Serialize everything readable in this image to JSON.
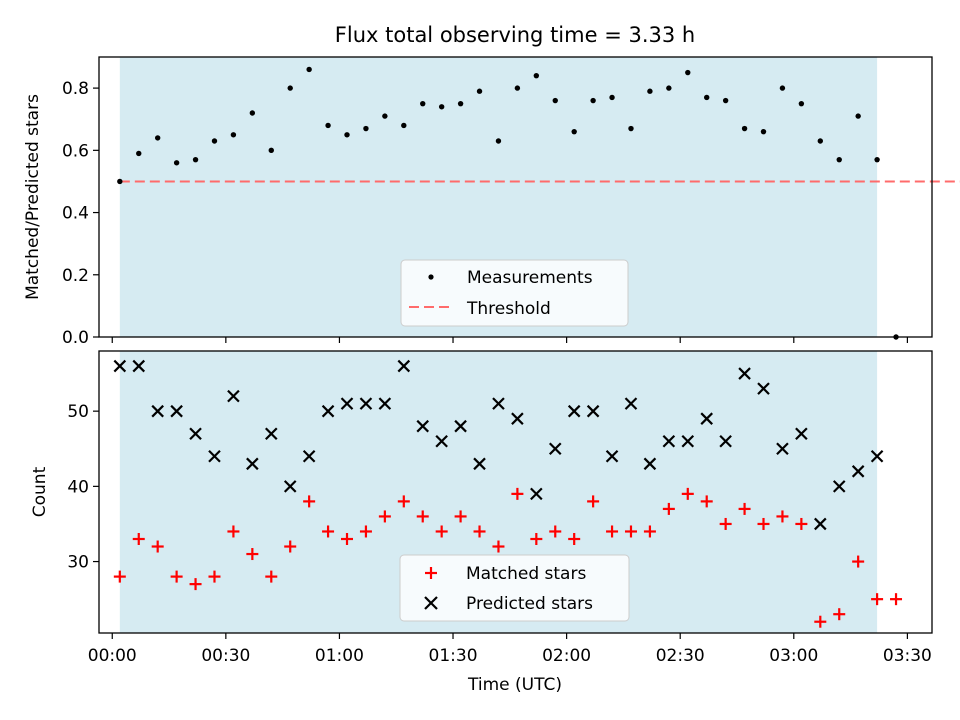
{
  "chart_data": [
    {
      "type": "scatter",
      "title": "Flux total observing time = 3.33 h",
      "xlabel": "",
      "ylabel": "Matched/Predicted stars",
      "ylim": [
        0,
        0.9
      ],
      "yticks": [
        "0.0",
        "0.2",
        "0.4",
        "0.6",
        "0.8"
      ],
      "threshold": {
        "name": "Threshold",
        "value": 0.5,
        "x_range": [
          2,
          230
        ],
        "color": "#ff6b6b"
      },
      "shaded_span_minutes": [
        2,
        202
      ],
      "shade_color": "#add8e6",
      "legend": [
        "Measurements",
        "Threshold"
      ],
      "legend_position": "lower center",
      "series": [
        {
          "name": "Measurements",
          "color": "#000000",
          "x": [
            2,
            7,
            12,
            17,
            22,
            27,
            32,
            37,
            42,
            47,
            52,
            57,
            62,
            67,
            72,
            77,
            82,
            87,
            92,
            97,
            102,
            107,
            112,
            117,
            122,
            127,
            132,
            137,
            142,
            147,
            152,
            157,
            162,
            167,
            172,
            177,
            182,
            187,
            192,
            197,
            202,
            207
          ],
          "y": [
            0.5,
            0.59,
            0.64,
            0.56,
            0.57,
            0.63,
            0.65,
            0.72,
            0.6,
            0.8,
            0.86,
            0.68,
            0.65,
            0.67,
            0.71,
            0.68,
            0.75,
            0.74,
            0.75,
            0.79,
            0.63,
            0.8,
            0.84,
            0.76,
            0.66,
            0.76,
            0.77,
            0.67,
            0.79,
            0.8,
            0.85,
            0.77,
            0.76,
            0.67,
            0.66,
            0.8,
            0.75,
            0.63,
            0.57,
            0.71,
            0.57,
            0.0
          ]
        }
      ]
    },
    {
      "type": "scatter",
      "title": "",
      "xlabel": "Time (UTC)",
      "ylabel": "Count",
      "ylim": [
        20.5,
        58
      ],
      "yticks": [
        "30",
        "40",
        "50"
      ],
      "xticks": [
        "00:00",
        "00:30",
        "01:00",
        "01:30",
        "02:00",
        "02:30",
        "03:00",
        "03:30"
      ],
      "shaded_span_minutes": [
        2,
        202
      ],
      "legend": [
        "Matched stars",
        "Predicted stars"
      ],
      "legend_position": "lower center",
      "series": [
        {
          "name": "Matched stars",
          "color": "#ff0000",
          "marker": "+",
          "x": [
            2,
            7,
            12,
            17,
            22,
            27,
            32,
            37,
            42,
            47,
            52,
            57,
            62,
            67,
            72,
            77,
            82,
            87,
            92,
            97,
            102,
            107,
            112,
            117,
            122,
            127,
            132,
            137,
            142,
            147,
            152,
            157,
            162,
            167,
            172,
            177,
            182,
            187,
            192,
            197,
            202,
            207
          ],
          "y": [
            28,
            33,
            32,
            28,
            27,
            28,
            34,
            31,
            28,
            32,
            38,
            34,
            33,
            34,
            36,
            38,
            36,
            34,
            36,
            34,
            32,
            39,
            33,
            34,
            33,
            38,
            34,
            34,
            34,
            37,
            39,
            38,
            35,
            37,
            35,
            36,
            35,
            22,
            23,
            30,
            25,
            25
          ]
        },
        {
          "name": "Predicted stars",
          "color": "#000000",
          "marker": "x",
          "x": [
            2,
            7,
            12,
            17,
            22,
            27,
            32,
            37,
            42,
            47,
            52,
            57,
            62,
            67,
            72,
            77,
            82,
            87,
            92,
            97,
            102,
            107,
            112,
            117,
            122,
            127,
            132,
            137,
            142,
            147,
            152,
            157,
            162,
            167,
            172,
            177,
            182,
            187,
            192,
            197,
            202
          ],
          "y": [
            56,
            56,
            50,
            50,
            47,
            44,
            52,
            43,
            47,
            40,
            44,
            50,
            51,
            51,
            51,
            56,
            48,
            46,
            48,
            43,
            51,
            49,
            39,
            45,
            50,
            50,
            44,
            51,
            43,
            46,
            46,
            49,
            46,
            55,
            53,
            45,
            47,
            35,
            40,
            42,
            44
          ]
        }
      ]
    }
  ]
}
